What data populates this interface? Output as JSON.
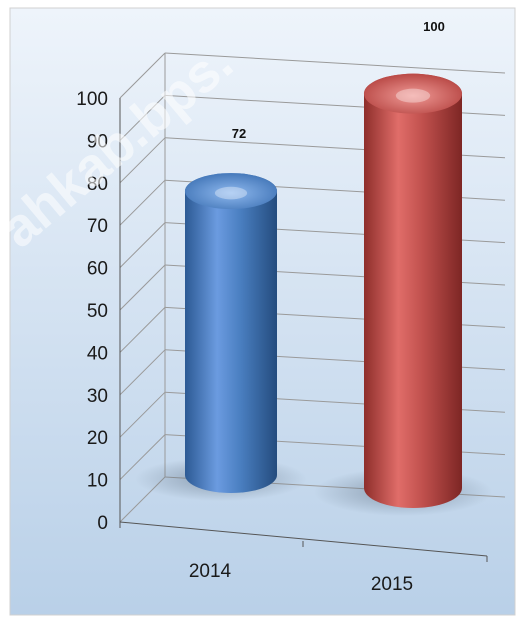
{
  "chart_data": {
    "type": "bar",
    "style": "3d-cylinder",
    "categories": [
      "2014",
      "2015"
    ],
    "values": [
      72,
      100
    ],
    "data_labels": [
      "72",
      "100"
    ],
    "ylim": [
      0,
      100
    ],
    "yticks": [
      "0",
      "10",
      "20",
      "30",
      "40",
      "50",
      "60",
      "70",
      "80",
      "90",
      "100"
    ],
    "grid": true,
    "legend": "none",
    "title": "",
    "xlabel": "",
    "ylabel": "",
    "colors": {
      "bar_2014": "#4a7fc1",
      "bar_2015": "#c0504d",
      "background_top": "#e9f1fa",
      "background_bottom": "#bdd3ea",
      "grid": "#9a9a9a"
    }
  },
  "watermark": "ahkab.bps."
}
